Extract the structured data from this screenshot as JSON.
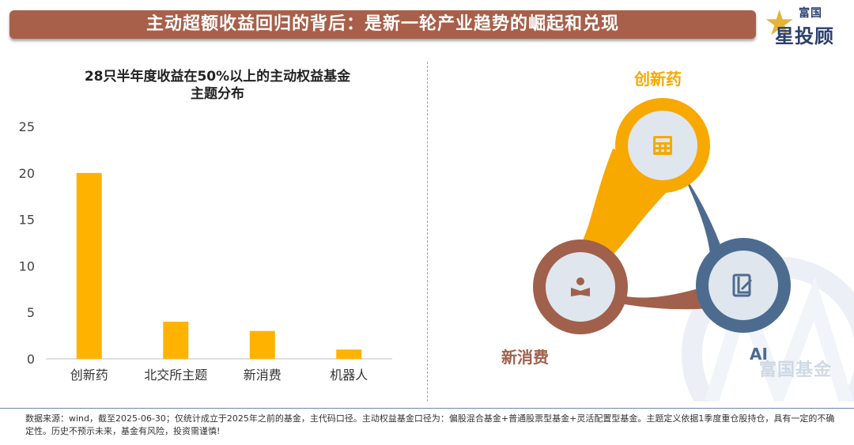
{
  "header": {
    "title": "主动超额收益回归的背后：是新一轮产业趋势的崛起和兑现",
    "logo_top": "富国",
    "logo_bottom": "星投顾"
  },
  "chart_data": {
    "type": "bar",
    "title_line1": "28只半年度收益在50%以上的主动权益基金",
    "title_line2": "主题分布",
    "categories": [
      "创新药",
      "北交所主题",
      "新消费",
      "机器人"
    ],
    "values": [
      20,
      4,
      3,
      1
    ],
    "yticks": [
      0,
      5,
      10,
      15,
      20,
      25
    ],
    "ylim": [
      0,
      25
    ],
    "bar_color": "#ffb300",
    "grid": false
  },
  "diagram": {
    "nodes": [
      {
        "label": "创新药",
        "icon": "calculator-icon",
        "color": "#f7a900",
        "label_color": "#f7a900"
      },
      {
        "label": "新消费",
        "icon": "reader-icon",
        "color": "#a0604c",
        "label_color": "#a0604c"
      },
      {
        "label": "AI",
        "icon": "book-icon",
        "color": "#4d6b8f",
        "label_color": "#4d6b8f"
      }
    ]
  },
  "watermark": "富国基金",
  "footnote": "数据来源：wind，截至2025-06-30；仅统计成立于2025年之前的基金，主代码口径。主动权益基金口径为：偏股混合基金+普通股票型基金+灵活配置型基金。主题定义依据1季度重仓股持仓，具有一定的不确定性。历史不预示未来，基金有风险，投资需谨慎!"
}
